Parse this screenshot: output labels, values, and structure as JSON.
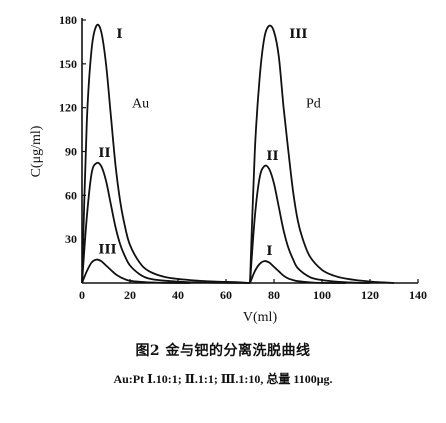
{
  "chart_data": {
    "type": "line",
    "xlabel": "V(ml)",
    "ylabel": "C(μg/ml)",
    "xlim": [
      0,
      140
    ],
    "ylim": [
      0,
      180
    ],
    "xticks": [
      "0",
      "20",
      "40",
      "60",
      "80",
      "100",
      "120",
      "140"
    ],
    "yticks": [
      "30",
      "60",
      "90",
      "120",
      "150",
      "180"
    ],
    "grid": false,
    "panels": [
      {
        "label": "Au",
        "series": [
          {
            "name": "I",
            "peak_label": "I",
            "x": [
              0,
              2,
              4,
              6,
              8,
              10,
              12,
              14,
              16,
              18,
              20,
              24,
              28,
              35,
              45,
              55,
              65,
              70
            ],
            "y": [
              0,
              110,
              160,
              176,
              172,
              150,
              115,
              80,
              55,
              38,
              26,
              14,
              8,
              4,
              2,
              1,
              0.5,
              0
            ]
          },
          {
            "name": "II",
            "peak_label": "II",
            "x": [
              0,
              2,
              4,
              6,
              8,
              10,
              12,
              14,
              16,
              18,
              20,
              24,
              28,
              35,
              45,
              55,
              70
            ],
            "y": [
              0,
              45,
              75,
              82,
              80,
              70,
              54,
              38,
              26,
              18,
              12,
              6,
              3,
              1.5,
              0.5,
              0.2,
              0
            ]
          },
          {
            "name": "III",
            "peak_label": "III",
            "x": [
              0,
              2,
              4,
              6,
              8,
              10,
              12,
              14,
              16,
              18,
              20,
              24,
              28,
              35,
              45
            ],
            "y": [
              0,
              8,
              14,
              16,
              15,
              12,
              9,
              6,
              4,
              2.5,
              1.5,
              0.8,
              0.4,
              0.1,
              0
            ]
          }
        ]
      },
      {
        "label": "Pd",
        "series": [
          {
            "name": "III",
            "peak_label": "III",
            "x": [
              70,
              72,
              74,
              76,
              78,
              80,
              82,
              84,
              86,
              88,
              90,
              92,
              95,
              100,
              105,
              110,
              120,
              130
            ],
            "y": [
              0,
              90,
              140,
              168,
              176,
              172,
              155,
              120,
              90,
              62,
              42,
              30,
              18,
              9,
              5,
              3,
              1,
              0
            ]
          },
          {
            "name": "II",
            "peak_label": "II",
            "x": [
              70,
              72,
              74,
              76,
              78,
              80,
              82,
              84,
              86,
              88,
              90,
              95,
              100,
              110,
              120
            ],
            "y": [
              0,
              45,
              72,
              80,
              78,
              68,
              52,
              36,
              24,
              16,
              10,
              4,
              2,
              0.5,
              0
            ]
          },
          {
            "name": "I",
            "peak_label": "I",
            "x": [
              70,
              72,
              74,
              76,
              78,
              80,
              82,
              84,
              86,
              88,
              90,
              95,
              100,
              110
            ],
            "y": [
              0,
              8,
              13,
              15,
              14,
              11,
              8,
              5,
              3,
              2,
              1.2,
              0.4,
              0.1,
              0
            ]
          }
        ]
      }
    ]
  },
  "caption": {
    "title": "图2  金与钯的分离洗脱曲线",
    "note": "Au:Pt   Ⅰ.10:1;  Ⅱ.1:1;  Ⅲ.1:10, 总量 1100μg."
  },
  "colors": {
    "line": "#111111",
    "background": "#ffffff"
  }
}
